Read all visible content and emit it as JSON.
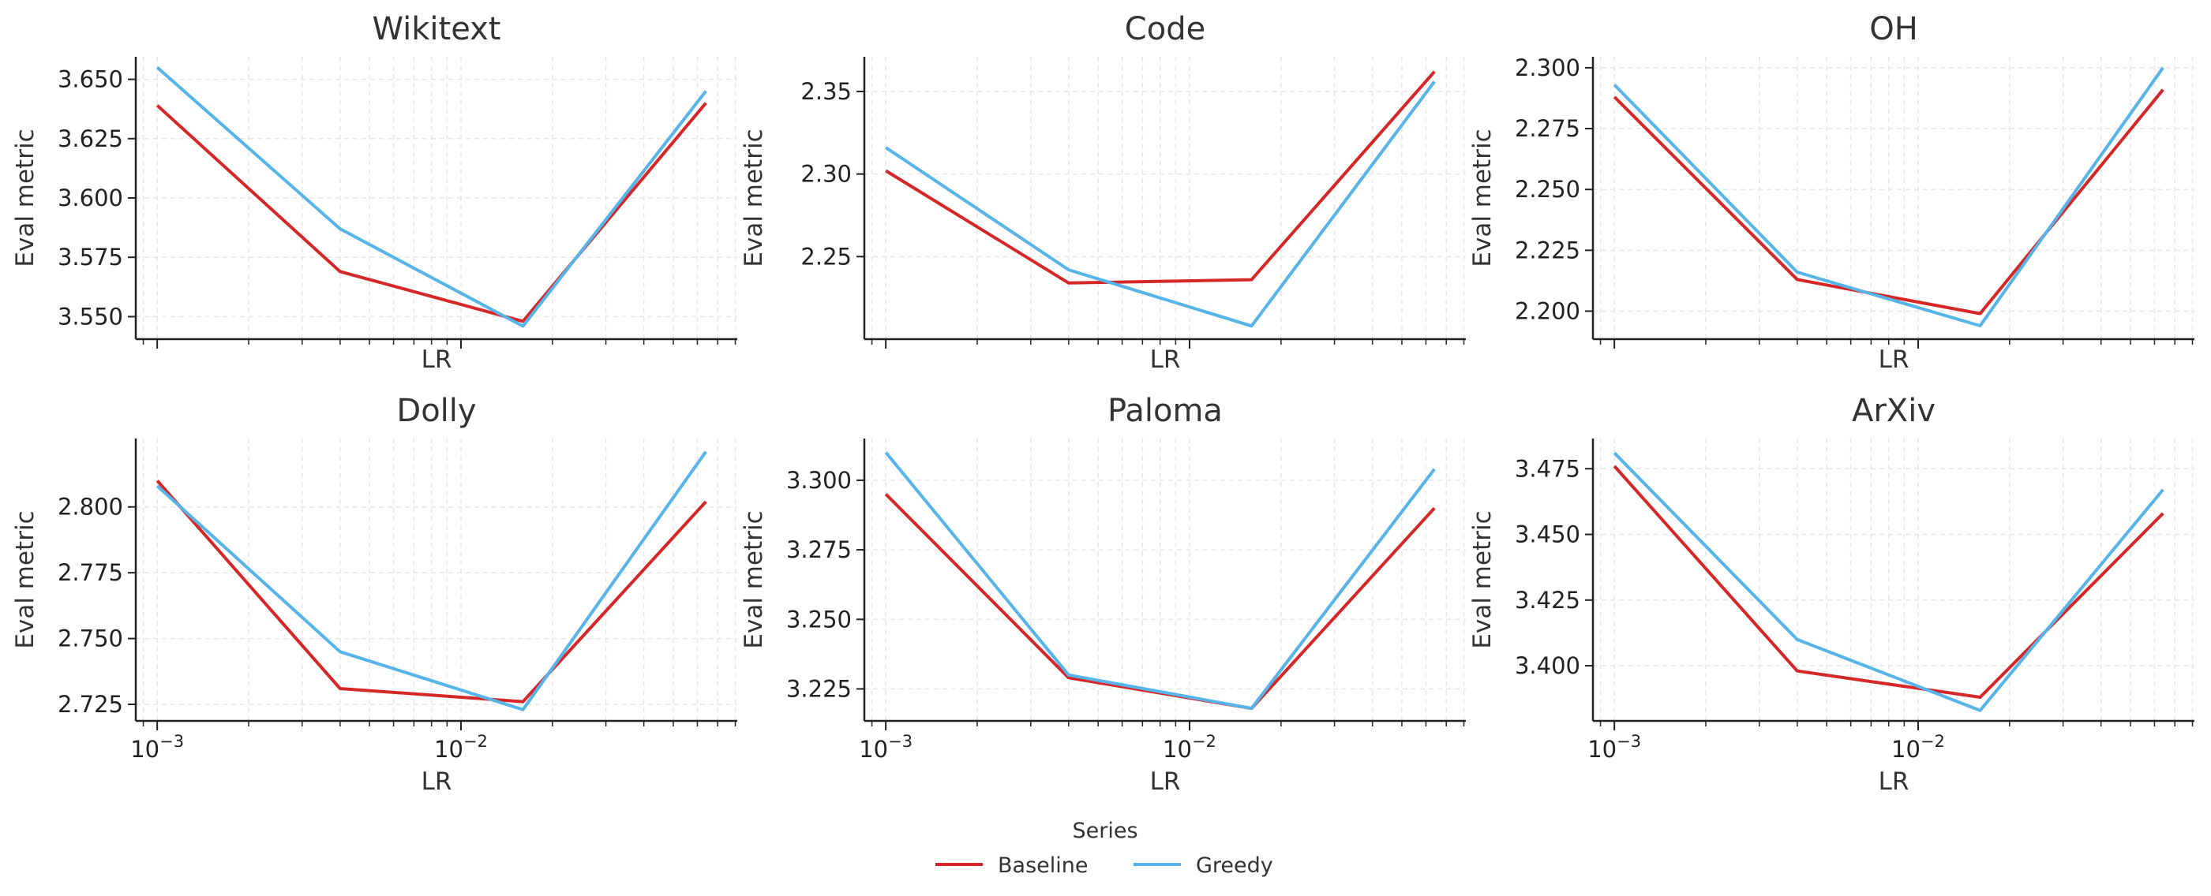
{
  "chart_data": [
    {
      "type": "line",
      "title": "Wikitext",
      "xlabel": "LR",
      "ylabel": "Eval metric",
      "xscale": "log",
      "x": [
        0.001,
        0.004,
        0.016,
        0.064
      ],
      "xticks": [],
      "yticks": [
        "3.550",
        "3.575",
        "3.600",
        "3.625",
        "3.650"
      ],
      "ylim": [
        3.5405,
        3.6595
      ],
      "grid": true,
      "series": [
        {
          "name": "Baseline",
          "values": [
            3.639,
            3.569,
            3.548,
            3.64
          ]
        },
        {
          "name": "Greedy",
          "values": [
            3.655,
            3.587,
            3.546,
            3.645
          ]
        }
      ]
    },
    {
      "type": "line",
      "title": "Code",
      "xlabel": "LR",
      "ylabel": "Eval metric",
      "xscale": "log",
      "x": [
        0.001,
        0.004,
        0.016,
        0.064
      ],
      "xticks": [],
      "yticks": [
        "2.25",
        "2.30",
        "2.35"
      ],
      "ylim": [
        2.2,
        2.371
      ],
      "grid": true,
      "series": [
        {
          "name": "Baseline",
          "values": [
            2.302,
            2.234,
            2.236,
            2.362
          ]
        },
        {
          "name": "Greedy",
          "values": [
            2.316,
            2.242,
            2.208,
            2.356
          ]
        }
      ]
    },
    {
      "type": "line",
      "title": "OH",
      "xlabel": "LR",
      "ylabel": "Eval metric",
      "xscale": "log",
      "x": [
        0.001,
        0.004,
        0.016,
        0.064
      ],
      "xticks": [],
      "yticks": [
        "2.200",
        "2.225",
        "2.250",
        "2.275",
        "2.300"
      ],
      "ylim": [
        2.1885,
        2.3045
      ],
      "grid": true,
      "series": [
        {
          "name": "Baseline",
          "values": [
            2.288,
            2.213,
            2.199,
            2.291
          ]
        },
        {
          "name": "Greedy",
          "values": [
            2.293,
            2.216,
            2.194,
            2.3
          ]
        }
      ]
    },
    {
      "type": "line",
      "title": "Dolly",
      "xlabel": "LR",
      "ylabel": "Eval metric",
      "xscale": "log",
      "x": [
        0.001,
        0.004,
        0.016,
        0.064
      ],
      "xticks": [
        "10^-3",
        "10^-2"
      ],
      "yticks": [
        "2.725",
        "2.750",
        "2.775",
        "2.800"
      ],
      "ylim": [
        2.7187,
        2.826
      ],
      "grid": true,
      "series": [
        {
          "name": "Baseline",
          "values": [
            2.81,
            2.731,
            2.726,
            2.802
          ]
        },
        {
          "name": "Greedy",
          "values": [
            2.808,
            2.745,
            2.723,
            2.821
          ]
        }
      ]
    },
    {
      "type": "line",
      "title": "Paloma",
      "xlabel": "LR",
      "ylabel": "Eval metric",
      "xscale": "log",
      "x": [
        0.001,
        0.004,
        0.016,
        0.064
      ],
      "xticks": [
        "10^-3",
        "10^-2"
      ],
      "yticks": [
        "3.225",
        "3.250",
        "3.275",
        "3.300"
      ],
      "ylim": [
        3.2135,
        3.315
      ],
      "grid": true,
      "series": [
        {
          "name": "Baseline",
          "values": [
            3.295,
            3.229,
            3.218,
            3.29
          ]
        },
        {
          "name": "Greedy",
          "values": [
            3.31,
            3.23,
            3.218,
            3.304
          ]
        }
      ]
    },
    {
      "type": "line",
      "title": "ArXiv",
      "xlabel": "LR",
      "ylabel": "Eval metric",
      "xscale": "log",
      "x": [
        0.001,
        0.004,
        0.016,
        0.064
      ],
      "xticks": [
        "10^-3",
        "10^-2"
      ],
      "yticks": [
        "3.400",
        "3.425",
        "3.450",
        "3.475"
      ],
      "ylim": [
        3.379,
        3.4865
      ],
      "grid": true,
      "series": [
        {
          "name": "Baseline",
          "values": [
            3.476,
            3.398,
            3.388,
            3.458
          ]
        },
        {
          "name": "Greedy",
          "values": [
            3.481,
            3.41,
            3.383,
            3.467
          ]
        }
      ]
    }
  ],
  "legend": {
    "title": "Series",
    "items": [
      {
        "label": "Baseline",
        "color": "#d62728"
      },
      {
        "label": "Greedy",
        "color": "#56b4e9"
      }
    ]
  },
  "colors": {
    "Baseline": "#d62728",
    "Greedy": "#56b4e9",
    "axis": "#222222",
    "grid": "#e6e6e6"
  }
}
